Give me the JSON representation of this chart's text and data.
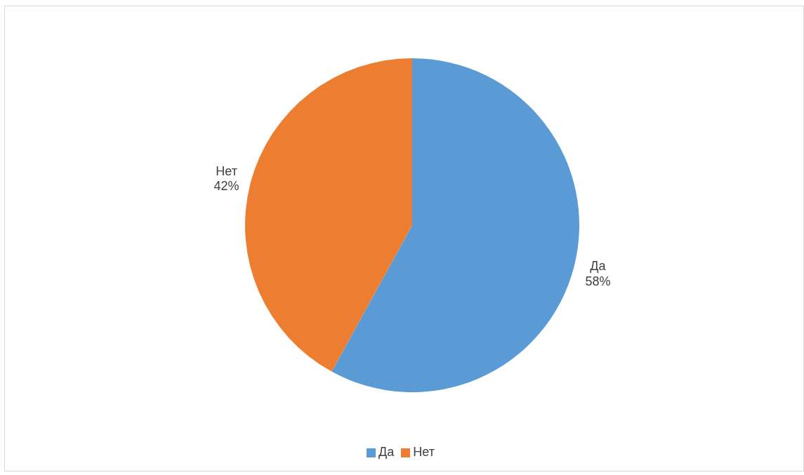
{
  "chart_data": {
    "type": "pie",
    "categories": [
      "Да",
      "Нет"
    ],
    "values": [
      58,
      42
    ],
    "colors": [
      "#5b9bd5",
      "#ed7d31"
    ],
    "value_labels": [
      "58%",
      "42%"
    ],
    "legend": "bottom"
  }
}
